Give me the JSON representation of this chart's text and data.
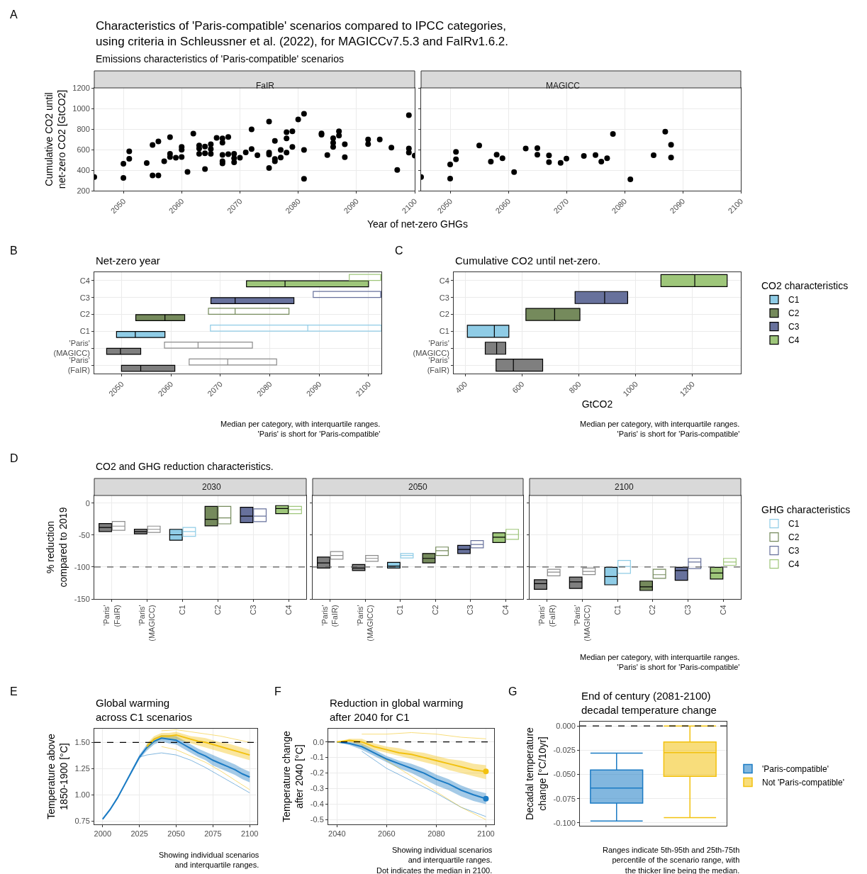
{
  "chart_data": [
    {
      "type": "other",
      "title": "Characteristics of 'Paris-compatible' scenarios compared to IPCC categories,\nusing criteria in Schleussner et al. (2022), for MAGICCv7.5.3 and FaIRv1.6.2.",
      "subtitle": "Emissions characteristics of 'Paris-compatible' scenarios",
      "annotations": [
        "A"
      ]
    },
    {
      "type": "scatter",
      "title": "FaIR",
      "xlabel": "Year of net-zero GHGs",
      "ylabel": "Cumulative CO2 until\nnet-zero CO2 [GtCO2]",
      "marker": "circle",
      "grid": true,
      "color": "#000000",
      "x": [
        2045,
        2050,
        2050,
        2051,
        2051,
        2054,
        2055,
        2055,
        2056,
        2056,
        2057,
        2058,
        2058,
        2058,
        2059,
        2060,
        2060,
        2060,
        2061,
        2062,
        2063,
        2063,
        2063,
        2064,
        2064,
        2064,
        2065,
        2065,
        2065,
        2066,
        2067,
        2067,
        2067,
        2067,
        2067,
        2068,
        2068,
        2069,
        2069,
        2069,
        2070,
        2071,
        2072,
        2072,
        2073,
        2075,
        2075,
        2075,
        2075,
        2076,
        2076,
        2076,
        2077,
        2077,
        2078,
        2078,
        2078,
        2079,
        2079,
        2080,
        2081,
        2081,
        2081,
        2084,
        2084,
        2085,
        2086,
        2086,
        2086,
        2087,
        2087,
        2088,
        2088,
        2092,
        2092,
        2094,
        2096,
        2097,
        2099,
        2099,
        2099,
        2100
      ],
      "values": [
        333,
        462,
        324,
        582,
        511,
        469,
        645,
        348,
        680,
        348,
        486,
        720,
        558,
        528,
        521,
        626,
        598,
        528,
        383,
        755,
        640,
        610,
        558,
        629,
        563,
        411,
        652,
        605,
        558,
        713,
        708,
        668,
        549,
        486,
        465,
        722,
        556,
        558,
        516,
        476,
        521,
        572,
        797,
        605,
        544,
        872,
        570,
        551,
        420,
        685,
        509,
        486,
        596,
        523,
        769,
        708,
        570,
        778,
        626,
        893,
        949,
        596,
        315,
        757,
        745,
        547,
        710,
        666,
        626,
        778,
        736,
        652,
        526,
        699,
        654,
        699,
        619,
        401,
        935,
        610,
        570,
        542
      ],
      "xlim": [
        2045,
        2100
      ],
      "ylim": [
        200,
        1200
      ],
      "xticks": [
        2050,
        2060,
        2070,
        2080,
        2090,
        2100
      ],
      "yticks": [
        200,
        400,
        600,
        800,
        1000,
        1200
      ]
    },
    {
      "type": "scatter",
      "title": "MAGICC",
      "marker": "circle",
      "grid": true,
      "color": "#000000",
      "tick_labels": "x",
      "x": [
        2045,
        2050,
        2050,
        2051,
        2051,
        2055,
        2057,
        2058,
        2059,
        2061,
        2063,
        2065,
        2065,
        2067,
        2067,
        2069,
        2070,
        2073,
        2075,
        2076,
        2077,
        2078,
        2081,
        2085,
        2087,
        2088,
        2088
      ],
      "values": [
        332,
        455,
        318,
        577,
        506,
        640,
        482,
        550,
        515,
        381,
        610,
        613,
        550,
        543,
        478,
        471,
        512,
        538,
        547,
        482,
        516,
        751,
        311,
        545,
        774,
        647,
        522
      ],
      "xlim": [
        2045,
        2100
      ],
      "ylim": [
        200,
        1200
      ],
      "xticks": [
        2050,
        2060,
        2070,
        2080,
        2090,
        2100
      ],
      "yticks": [
        200,
        400,
        600,
        800,
        1000,
        1200
      ]
    },
    {
      "type": "box",
      "orientation": "horizontal",
      "title": "Net-zero year",
      "grid": true,
      "annotations": [
        "B",
        "Median per category, with interquartile ranges.\n'Paris' is short for 'Paris-compatible'"
      ],
      "categories": [
        "C4",
        "C3",
        "C2",
        "C1",
        "'Paris'\n(MAGICC)",
        "'Paris'\n(FaIR)"
      ],
      "xlim": [
        2044.5,
        2102.6
      ],
      "xticks": [
        2050,
        2060,
        2070,
        2080,
        2090,
        2100
      ],
      "series": [
        {
          "colors": [
            "#9ec67a",
            "#67719c",
            "#758a5c",
            "#8fcce6",
            "#7f7f7f",
            "#7f7f7f"
          ],
          "boxes": [
            {
              "low": 2075.3,
              "q1": 2075.3,
              "median": 2083.1,
              "q3": 2100,
              "high": 2100
            },
            {
              "low": 2068.1,
              "q1": 2068.1,
              "median": 2073.0,
              "q3": 2084.9,
              "high": 2084.9
            },
            {
              "low": 2052.9,
              "q1": 2052.9,
              "median": 2058.8,
              "q3": 2062.8,
              "high": 2062.8
            },
            {
              "low": 2049.0,
              "q1": 2049.0,
              "median": 2052.8,
              "q3": 2058.8,
              "high": 2058.8
            },
            {
              "low": 2047.0,
              "q1": 2047.0,
              "median": 2049.8,
              "q3": 2053.9,
              "high": 2053.9
            },
            {
              "low": 2050.0,
              "q1": 2050.0,
              "median": 2053.9,
              "q3": 2060.8,
              "high": 2060.8
            }
          ]
        },
        {
          "colors": [
            "#9ec67a",
            "#67719c",
            "#758a5c",
            "#8fcce6",
            "#8c8c8c",
            "#8c8c8c"
          ],
          "boxes": [
            {
              "low": 2096.1,
              "q1": 2096.1,
              "median": 2102.6,
              "q3": 2102.6,
              "high": 2102.6
            },
            {
              "low": 2088.8,
              "q1": 2088.8,
              "median": 2102.6,
              "q3": 2102.6,
              "high": 2102.6
            },
            {
              "low": 2067.6,
              "q1": 2067.6,
              "median": 2073.0,
              "q3": 2083.9,
              "high": 2083.9
            },
            {
              "low": 2068.0,
              "q1": 2068.0,
              "median": 2087.7,
              "q3": 2102.6,
              "high": 2102.6
            },
            {
              "low": 2058.7,
              "q1": 2058.7,
              "median": 2065.5,
              "q3": 2076.5,
              "high": 2076.5
            },
            {
              "low": 2063.7,
              "q1": 2063.7,
              "median": 2071.5,
              "q3": 2081.4,
              "high": 2081.4
            }
          ]
        }
      ]
    },
    {
      "type": "box",
      "orientation": "horizontal",
      "title": "Cumulative CO2 until net-zero.",
      "xlabel": "GtCO2",
      "grid": true,
      "legend": "right",
      "legend_title": "CO2 characteristics",
      "annotations": [
        "C",
        "Median per category, with interquartile ranges.\n'Paris' is short for 'Paris-compatible'"
      ],
      "categories": [
        "C4",
        "C3",
        "C2",
        "C1",
        "'Paris'\n(MAGICC)",
        "'Paris'\n(FaIR)"
      ],
      "xlim": [
        360,
        1370
      ],
      "xticks": [
        400,
        600,
        800,
        1000,
        1200
      ],
      "series": [
        {
          "colors": [
            null,
            null,
            null,
            null,
            "#7f7f7f",
            "#7f7f7f"
          ],
          "boxes": [
            null,
            null,
            null,
            null,
            {
              "low": 471,
              "q1": 471,
              "median": 511,
              "q3": 543,
              "high": 543
            },
            {
              "low": 509,
              "q1": 509,
              "median": 570,
              "q3": 673,
              "high": 673
            }
          ]
        },
        {
          "name": "C1",
          "color": "#8fcce6",
          "boxes": [
            null,
            null,
            null,
            {
              "low": 408,
              "q1": 408,
              "median": 503,
              "q3": 554,
              "high": 554
            },
            null,
            null
          ]
        },
        {
          "name": "C2",
          "color": "#758a5c",
          "boxes": [
            null,
            null,
            {
              "low": 614,
              "q1": 614,
              "median": 715,
              "q3": 804,
              "high": 804
            },
            null,
            null,
            null
          ]
        },
        {
          "name": "C3",
          "color": "#67719c",
          "boxes": [
            null,
            {
              "low": 787,
              "q1": 787,
              "median": 891,
              "q3": 972,
              "high": 972
            },
            null,
            null,
            null,
            null
          ]
        },
        {
          "name": "C4",
          "color": "#9ec67a",
          "boxes": [
            {
              "low": 1089,
              "q1": 1089,
              "median": 1208,
              "q3": 1322,
              "high": 1322
            },
            null,
            null,
            null,
            null,
            null
          ]
        }
      ]
    },
    {
      "type": "other",
      "title": "CO2 and GHG reduction characteristics.",
      "annotations": [
        "D",
        "Median per category, with interquartile ranges.\n'Paris' is short for 'Paris-compatible'"
      ]
    },
    {
      "type": "box",
      "title": "2030",
      "ylabel": "% reduction\ncompared to 2019",
      "grid": true,
      "categories": [
        "'Paris'\n(FaIR)",
        "'Paris'\n(MAGICC)",
        "C1",
        "C2",
        "C3",
        "C4"
      ],
      "ylim": [
        -150,
        12
      ],
      "yticks": [
        -150,
        -100,
        -50,
        0
      ],
      "ref_lines": [
        {
          "axis": "y",
          "value": -100,
          "line_style": "dashed",
          "color": "#595959"
        }
      ],
      "series": [
        {
          "colors": [
            "#7f7f7f",
            "#7f7f7f",
            "#8fcce6",
            "#758a5c",
            "#67719c",
            "#9ec67a"
          ],
          "boxes": [
            {
              "low": -44.5,
              "q1": -44.5,
              "median": -38,
              "q3": -32,
              "high": -32
            },
            {
              "low": -48,
              "q1": -48,
              "median": -44.5,
              "q3": -40.7,
              "high": -40.7
            },
            {
              "low": -58,
              "q1": -58,
              "median": -49.6,
              "q3": -41,
              "high": -41
            },
            {
              "low": -35.6,
              "q1": -35.6,
              "median": -25.4,
              "q3": -5,
              "high": -5
            },
            {
              "low": -30.5,
              "q1": -30.5,
              "median": -20.3,
              "q3": -6.4,
              "high": -6.4
            },
            {
              "low": -16.5,
              "q1": -16.5,
              "median": -8.3,
              "q3": -3.8,
              "high": -3.8
            }
          ]
        },
        {
          "colors": [
            "#8c8c8c",
            "#8c8c8c",
            "#8fcce6",
            "#758a5c",
            "#67719c",
            "#9ec67a"
          ],
          "boxes": [
            {
              "low": -42.6,
              "q1": -42.6,
              "median": -36,
              "q3": -28.6,
              "high": -28.6
            },
            {
              "low": -45.8,
              "q1": -45.8,
              "median": -41,
              "q3": -36,
              "high": -36
            },
            {
              "low": -52,
              "q1": -52,
              "median": -44.5,
              "q3": -38,
              "high": -38
            },
            {
              "low": -32.4,
              "q1": -32.4,
              "median": -23,
              "q3": -5,
              "high": -5
            },
            {
              "low": -29,
              "q1": -29,
              "median": -20.3,
              "q3": -8.9,
              "high": -8.9
            },
            {
              "low": -16.5,
              "q1": -16.5,
              "median": -10,
              "q3": -5,
              "high": -5
            }
          ]
        }
      ]
    },
    {
      "type": "box",
      "title": "2050",
      "grid": true,
      "tick_labels": "x",
      "categories": [
        "'Paris'\n(FaIR)",
        "'Paris'\n(MAGICC)",
        "C1",
        "C2",
        "C3",
        "C4"
      ],
      "ylim": [
        -150,
        12
      ],
      "yticks": [
        -150,
        -100,
        -50,
        0
      ],
      "ref_lines": [
        {
          "axis": "y",
          "value": -100,
          "line_style": "dashed",
          "color": "#595959"
        }
      ],
      "series": [
        {
          "colors": [
            "#7f7f7f",
            "#7f7f7f",
            "#8fcce6",
            "#758a5c",
            "#67719c",
            "#9ec67a"
          ],
          "boxes": [
            {
              "low": -101.7,
              "q1": -101.7,
              "median": -93.5,
              "q3": -84.5,
              "high": -84.5
            },
            {
              "low": -105.5,
              "q1": -105.5,
              "median": -101.7,
              "q3": -96,
              "high": -96
            },
            {
              "low": -101.7,
              "q1": -101.7,
              "median": -98.5,
              "q3": -92.8,
              "high": -92.8
            },
            {
              "low": -93.5,
              "q1": -93.5,
              "median": -86.5,
              "q3": -78.8,
              "high": -78.8
            },
            {
              "low": -78.8,
              "q1": -78.8,
              "median": -72.5,
              "q3": -66,
              "high": -66
            },
            {
              "low": -61.7,
              "q1": -61.7,
              "median": -53.4,
              "q3": -46.4,
              "high": -46.4
            }
          ]
        },
        {
          "colors": [
            "#8c8c8c",
            "#8c8c8c",
            "#8fcce6",
            "#758a5c",
            "#67719c",
            "#9ec67a"
          ],
          "boxes": [
            {
              "low": -87.7,
              "q1": -87.7,
              "median": -82,
              "q3": -75.7,
              "high": -75.7
            },
            {
              "low": -91,
              "q1": -91,
              "median": -86.5,
              "q3": -82,
              "high": -82
            },
            {
              "low": -85.8,
              "q1": -85.8,
              "median": -82,
              "q3": -78.8,
              "high": -78.8
            },
            {
              "low": -82,
              "q1": -82,
              "median": -74.4,
              "q3": -68.7,
              "high": -68.7
            },
            {
              "low": -70,
              "q1": -70,
              "median": -64.8,
              "q3": -58.5,
              "high": -58.5
            },
            {
              "low": -56.6,
              "q1": -56.6,
              "median": -49,
              "q3": -41,
              "high": -41
            }
          ]
        }
      ]
    },
    {
      "type": "box",
      "title": "2100",
      "grid": true,
      "tick_labels": "x",
      "legend": "right",
      "legend_title": "GHG characteristics",
      "categories": [
        "'Paris'\n(FaIR)",
        "'Paris'\n(MAGICC)",
        "C1",
        "C2",
        "C3",
        "C4"
      ],
      "ylim": [
        -150,
        12
      ],
      "yticks": [
        -150,
        -100,
        -50,
        0
      ],
      "ref_lines": [
        {
          "axis": "y",
          "value": -100,
          "line_style": "dashed",
          "color": "#595959"
        }
      ],
      "series": [
        {
          "colors": [
            "#7f7f7f",
            "#7f7f7f",
            "#8fcce6",
            "#758a5c",
            "#67719c",
            "#9ec67a"
          ],
          "boxes": [
            {
              "low": -134.8,
              "q1": -134.8,
              "median": -126,
              "q3": -120,
              "high": -120
            },
            {
              "low": -133.5,
              "q1": -133.5,
              "median": -123.3,
              "q3": -115.7,
              "high": -115.7
            },
            {
              "low": -127.8,
              "q1": -127.8,
              "median": -115,
              "q3": -100.4,
              "high": -100.4
            },
            {
              "low": -136.7,
              "q1": -136.7,
              "median": -131,
              "q3": -122,
              "high": -122
            },
            {
              "low": -120.8,
              "q1": -120.8,
              "median": -105.5,
              "q3": -100.4,
              "high": -100.4
            },
            {
              "low": -118.9,
              "q1": -118.9,
              "median": -109.3,
              "q3": -100.4,
              "high": -100.4
            }
          ]
        },
        {
          "colors": [
            "#8c8c8c",
            "#8c8c8c",
            null,
            null,
            null,
            null
          ],
          "boxes": [
            {
              "low": -113.8,
              "q1": -113.8,
              "median": -108,
              "q3": -103.6,
              "high": -103.6
            },
            {
              "low": -111.9,
              "q1": -111.9,
              "median": -106.8,
              "q3": -101.7,
              "high": -101.7
            },
            null,
            null,
            null,
            null
          ]
        },
        {
          "name": "C1",
          "color": "#8fcce6",
          "boxes": [
            null,
            null,
            {
              "low": -110,
              "q1": -110,
              "median": -99.2,
              "q3": -89.6,
              "high": -89.6
            },
            null,
            null,
            null
          ]
        },
        {
          "name": "C2",
          "color": "#758a5c",
          "boxes": [
            null,
            null,
            null,
            {
              "low": -117.6,
              "q1": -117.6,
              "median": -112,
              "q3": -103.6,
              "high": -103.6
            },
            null,
            null
          ]
        },
        {
          "name": "C3",
          "color": "#67719c",
          "boxes": [
            null,
            null,
            null,
            null,
            {
              "low": -102.4,
              "q1": -102.4,
              "median": -92.2,
              "q3": -86.5,
              "high": -86.5
            },
            null
          ]
        },
        {
          "name": "C4",
          "color": "#9ec67a",
          "boxes": [
            null,
            null,
            null,
            null,
            null,
            {
              "low": -97.3,
              "q1": -97.3,
              "median": -92.2,
              "q3": -86.5,
              "high": -86.5
            }
          ]
        }
      ]
    },
    {
      "type": "line",
      "title": "Global warming\nacross C1 scenarios",
      "ylabel": "Temperature above\n1850-1900 [°C]",
      "grid": true,
      "annotations": [
        "E",
        "Showing individual scenarios\nand interquartile ranges."
      ],
      "xlim": [
        1994.3,
        2105.2
      ],
      "ylim": [
        0.72,
        1.63
      ],
      "xticks": [
        2000,
        2025,
        2050,
        2075,
        2100
      ],
      "yticks": [
        0.75,
        {
          "value": 1.0,
          "label": "1.00"
        },
        1.25,
        {
          "value": 1.5,
          "label": "1.50"
        }
      ],
      "ref_lines": [
        {
          "axis": "y",
          "value": 1.5,
          "line_style": "dashed",
          "color": "#000000"
        }
      ],
      "series": [
        {
          "color": "#1b7bc4",
          "x": [
            2025,
            2030,
            2040,
            2050,
            2060,
            2070,
            2080,
            2090,
            2100
          ],
          "values": [
            1.36,
            1.38,
            1.4,
            1.38,
            1.33,
            1.26,
            1.18,
            1.1,
            1.02
          ]
        },
        {
          "color": "#f2c10f",
          "x": [
            2040,
            2050,
            2060,
            2070,
            2080,
            2090,
            2100
          ],
          "values": [
            1.61,
            1.62,
            1.6,
            1.58,
            1.56,
            1.53,
            1.5
          ]
        },
        {
          "color": "#f2c10f",
          "x": [
            2040,
            2050,
            2060,
            2070,
            2080,
            2090,
            2100
          ],
          "values": [
            1.46,
            1.43,
            1.37,
            1.31,
            1.23,
            1.14,
            1.05
          ]
        },
        {
          "color": "#1b7bc4",
          "x": [
            2000,
            2005,
            2010,
            2015,
            2020,
            2025,
            2030,
            2035,
            2040,
            2045,
            2050,
            2055,
            2060,
            2065,
            2070,
            2075,
            2080,
            2085,
            2090,
            2095,
            2100
          ],
          "values": [
            0.77,
            0.86,
            0.97,
            1.1,
            1.23,
            1.36,
            1.45,
            1.51,
            1.54,
            1.53,
            1.52,
            1.48,
            1.44,
            1.4,
            1.37,
            1.33,
            1.3,
            1.27,
            1.24,
            1.2,
            1.17
          ],
          "lower": [
            0.76,
            0.85,
            0.96,
            1.09,
            1.22,
            1.34,
            1.42,
            1.48,
            1.51,
            1.49,
            1.48,
            1.44,
            1.4,
            1.36,
            1.33,
            1.28,
            1.25,
            1.22,
            1.19,
            1.15,
            1.12
          ],
          "upper": [
            0.78,
            0.87,
            0.98,
            1.11,
            1.24,
            1.38,
            1.48,
            1.54,
            1.57,
            1.57,
            1.56,
            1.52,
            1.48,
            1.44,
            1.41,
            1.38,
            1.35,
            1.32,
            1.29,
            1.25,
            1.22
          ]
        },
        {
          "color": "#f2c10f",
          "x": [
            2030,
            2035,
            2040,
            2045,
            2050,
            2055,
            2060,
            2065,
            2070,
            2075,
            2080,
            2085,
            2090,
            2095,
            2100
          ],
          "values": [
            1.46,
            1.53,
            1.56,
            1.56,
            1.57,
            1.55,
            1.53,
            1.51,
            1.5,
            1.48,
            1.46,
            1.44,
            1.42,
            1.4,
            1.38
          ],
          "lower": [
            1.43,
            1.5,
            1.53,
            1.53,
            1.53,
            1.51,
            1.49,
            1.47,
            1.45,
            1.43,
            1.41,
            1.39,
            1.37,
            1.35,
            1.33
          ],
          "upper": [
            1.49,
            1.56,
            1.59,
            1.59,
            1.6,
            1.58,
            1.56,
            1.55,
            1.54,
            1.52,
            1.5,
            1.49,
            1.47,
            1.45,
            1.43
          ]
        }
      ]
    },
    {
      "type": "line",
      "title": "Reduction in global warming\nafter 2040 for C1",
      "ylabel": "Temperature change\nafter 2040 [°C]",
      "grid": true,
      "annotations": [
        "F",
        "Showing individual scenarios\nand interquartile ranges.\nDot indicates the median in 2100."
      ],
      "xlim": [
        2036.5,
        2103.3
      ],
      "ylim": [
        -0.53,
        0.085
      ],
      "xticks": [
        2040,
        2060,
        2080,
        2100
      ],
      "yticks": [
        -0.5,
        -0.4,
        -0.3,
        -0.2,
        -0.1,
        {
          "value": 0,
          "label": "0.0"
        }
      ],
      "ref_lines": [
        {
          "axis": "y",
          "value": 0,
          "line_style": "dashed",
          "color": "#000000"
        }
      ],
      "series": [
        {
          "color": "#f2c10f",
          "x": [
            2050,
            2060,
            2070,
            2080,
            2090,
            2100
          ],
          "values": [
            0.05,
            0.05,
            0.06,
            0.05,
            0.03,
            0.02
          ]
        },
        {
          "color": "#1b7bc4",
          "x": [
            2050,
            2060,
            2070,
            2080,
            2090,
            2100
          ],
          "values": [
            -0.06,
            -0.17,
            -0.25,
            -0.33,
            -0.42,
            -0.48
          ]
        },
        {
          "color": "#f2c10f",
          "x": [
            2050,
            2060,
            2070,
            2080,
            2090,
            2100
          ],
          "values": [
            -0.02,
            -0.12,
            -0.22,
            -0.32,
            -0.42,
            -0.5
          ]
        },
        {
          "color": "#1b7bc4",
          "x": [
            2040,
            2045,
            2050,
            2055,
            2060,
            2065,
            2070,
            2075,
            2080,
            2085,
            2090,
            2095,
            2100
          ],
          "values": [
            0,
            -0.01,
            -0.03,
            -0.07,
            -0.11,
            -0.14,
            -0.17,
            -0.2,
            -0.24,
            -0.27,
            -0.31,
            -0.34,
            -0.365
          ],
          "lower": [
            0,
            -0.02,
            -0.05,
            -0.09,
            -0.13,
            -0.17,
            -0.2,
            -0.24,
            -0.28,
            -0.31,
            -0.35,
            -0.38,
            -0.4
          ],
          "upper": [
            0,
            0.0,
            -0.01,
            -0.05,
            -0.09,
            -0.12,
            -0.14,
            -0.17,
            -0.21,
            -0.24,
            -0.28,
            -0.31,
            -0.33
          ]
        },
        {
          "color": "#f2c10f",
          "x": [
            2040,
            2045,
            2050,
            2055,
            2060,
            2065,
            2070,
            2075,
            2080,
            2085,
            2090,
            2095,
            2100
          ],
          "values": [
            0,
            0.01,
            0.0,
            -0.03,
            -0.05,
            -0.07,
            -0.08,
            -0.1,
            -0.12,
            -0.14,
            -0.16,
            -0.18,
            -0.19
          ],
          "lower": [
            0,
            0.0,
            -0.02,
            -0.05,
            -0.07,
            -0.09,
            -0.11,
            -0.13,
            -0.15,
            -0.18,
            -0.2,
            -0.22,
            -0.24
          ],
          "upper": [
            0,
            0.02,
            0.02,
            -0.01,
            -0.03,
            -0.04,
            -0.06,
            -0.07,
            -0.09,
            -0.11,
            -0.12,
            -0.14,
            -0.15
          ]
        },
        {
          "type": "scatter",
          "marker": "circle",
          "color": "#1b7bc4",
          "x": [
            2100
          ],
          "values": [
            -0.365
          ]
        },
        {
          "type": "scatter",
          "marker": "circle",
          "color": "#f2c10f",
          "x": [
            2100
          ],
          "values": [
            -0.19
          ]
        }
      ]
    },
    {
      "type": "box",
      "title": "End of century (2081-2100)\ndecadal temperature change",
      "ylabel": "Decadal temperature\nchange [°C/10yr]",
      "grid": true,
      "legend": "right",
      "annotations": [
        "G",
        "Ranges indicate 5th-95th and 25th-75th\npercentile of the scenario range, with\nthe thicker line being the median."
      ],
      "categories": [
        null,
        null
      ],
      "ylim": [
        -0.103,
        0.0045
      ],
      "yticks": [
        {
          "value": -0.1,
          "label": "-0.100"
        },
        {
          "value": -0.075,
          "label": "-0.075"
        },
        {
          "value": -0.05,
          "label": "-0.050"
        },
        {
          "value": -0.025,
          "label": "-0.025"
        },
        {
          "value": 0,
          "label": "0.000"
        }
      ],
      "ref_lines": [
        {
          "axis": "y",
          "value": 0,
          "line_style": "dashed",
          "color": "#000000"
        }
      ],
      "series": [
        {
          "name": "'Paris-compatible'",
          "color": "#1b7bc4",
          "boxes": [
            {
              "low": -0.098,
              "q1": -0.0796,
              "median": -0.064,
              "q3": -0.0455,
              "high": -0.028
            },
            null
          ]
        },
        {
          "name": "Not 'Paris-compatible'",
          "color": "#f2c10f",
          "boxes": [
            null,
            {
              "low": -0.0945,
              "q1": -0.052,
              "median": -0.0275,
              "q3": -0.0165,
              "high": 0.0
            }
          ]
        }
      ]
    }
  ]
}
